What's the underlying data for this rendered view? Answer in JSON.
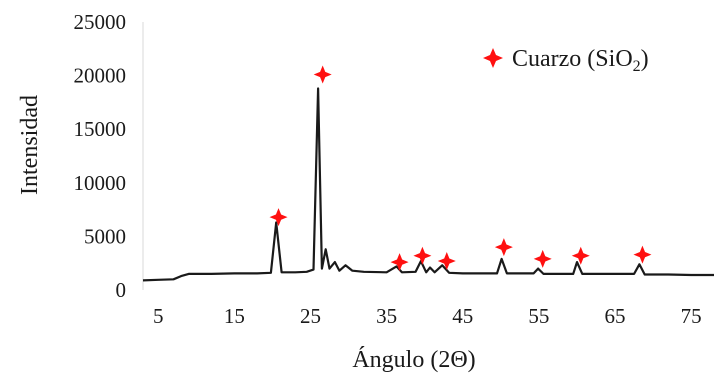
{
  "chart_data": {
    "type": "line",
    "xlabel": "Ángulo (2Θ)",
    "ylabel": "Intensidad",
    "xlim": [
      3,
      78
    ],
    "ylim": [
      0,
      25000
    ],
    "x_ticks": [
      "5",
      "15",
      "25",
      "35",
      "45",
      "55",
      "65",
      "75"
    ],
    "y_ticks": [
      "0",
      "5000",
      "10000",
      "15000",
      "20000",
      "25000"
    ],
    "legend": {
      "label": "Cuarzo (SiO",
      "subscript": "2",
      "suffix": ")",
      "marker": "red-cross",
      "position": "top-right"
    },
    "colors": {
      "line": "#1a1a1a",
      "marker": "#ff1010"
    },
    "series": [
      {
        "values": [
          [
            3,
            900
          ],
          [
            5,
            950
          ],
          [
            7,
            1000
          ],
          [
            8,
            1300
          ],
          [
            9,
            1500
          ],
          [
            12,
            1500
          ],
          [
            15,
            1550
          ],
          [
            18,
            1550
          ],
          [
            19.8,
            1600
          ],
          [
            20.5,
            6300
          ],
          [
            21.2,
            1650
          ],
          [
            23,
            1650
          ],
          [
            24.5,
            1700
          ],
          [
            25.4,
            1900
          ],
          [
            26.0,
            18800
          ],
          [
            26.5,
            2000
          ],
          [
            27.0,
            3800
          ],
          [
            27.5,
            2000
          ],
          [
            28.2,
            2600
          ],
          [
            28.8,
            1800
          ],
          [
            29.6,
            2300
          ],
          [
            30.5,
            1800
          ],
          [
            32,
            1700
          ],
          [
            35,
            1650
          ],
          [
            36.3,
            2200
          ],
          [
            37,
            1650
          ],
          [
            38.8,
            1700
          ],
          [
            39.5,
            2700
          ],
          [
            40.2,
            1650
          ],
          [
            40.7,
            2100
          ],
          [
            41.3,
            1650
          ],
          [
            42.3,
            2300
          ],
          [
            43.2,
            1600
          ],
          [
            45,
            1550
          ],
          [
            49.5,
            1550
          ],
          [
            50.1,
            2900
          ],
          [
            50.8,
            1550
          ],
          [
            54.3,
            1550
          ],
          [
            54.9,
            2000
          ],
          [
            55.6,
            1500
          ],
          [
            59.5,
            1500
          ],
          [
            60.0,
            2600
          ],
          [
            60.7,
            1500
          ],
          [
            64,
            1500
          ],
          [
            67.5,
            1500
          ],
          [
            68.2,
            2400
          ],
          [
            68.9,
            1450
          ],
          [
            72,
            1450
          ],
          [
            75,
            1400
          ],
          [
            78,
            1400
          ]
        ]
      }
    ],
    "markers": [
      {
        "x": 20.8,
        "y": 6800
      },
      {
        "x": 26.6,
        "y": 20100
      },
      {
        "x": 36.7,
        "y": 2600
      },
      {
        "x": 39.7,
        "y": 3200
      },
      {
        "x": 42.9,
        "y": 2700
      },
      {
        "x": 50.4,
        "y": 4000
      },
      {
        "x": 55.5,
        "y": 2900
      },
      {
        "x": 60.5,
        "y": 3200
      },
      {
        "x": 68.6,
        "y": 3300
      }
    ]
  }
}
